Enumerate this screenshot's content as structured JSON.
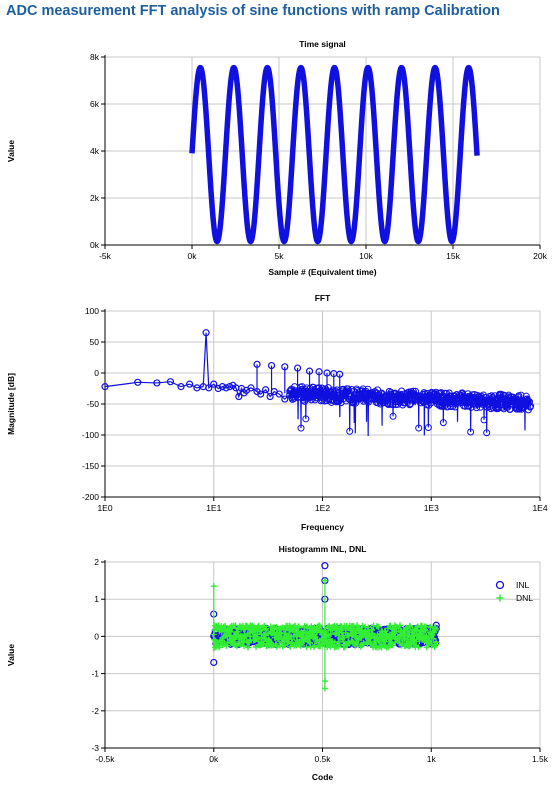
{
  "page": {
    "title": "ADC measurement FFT analysis of sine functions with ramp Calibration"
  },
  "colors": {
    "series_blue": "#1010e0",
    "series_green": "#33ee33",
    "grid": "#c8c8c8",
    "title": "#1f5e9e"
  },
  "chart_data": [
    {
      "type": "scatter",
      "title": "Time signal",
      "xlabel": "Sample # (Equivalent time)",
      "ylabel": "Value",
      "xlim": [
        -5000,
        20000
      ],
      "ylim": [
        0,
        8000
      ],
      "x_ticks": [
        -5000,
        0,
        5000,
        10000,
        15000,
        20000
      ],
      "x_tick_labels": [
        "-5k",
        "0k",
        "5k",
        "10k",
        "15k",
        "20k"
      ],
      "y_ticks": [
        0,
        2000,
        4000,
        6000,
        8000
      ],
      "y_tick_labels": [
        "0k",
        "2k",
        "4k",
        "6k",
        "8k"
      ],
      "grid": true,
      "series": [
        {
          "color": "#1010e0",
          "signal": {
            "shape": "sine",
            "x_start": 0,
            "x_end": 16384,
            "cycles": 8.5,
            "mean": 3850,
            "amplitude": 3700,
            "start_value": 3900
          }
        }
      ]
    },
    {
      "type": "line",
      "title": "FFT",
      "xlabel": "Frequency",
      "ylabel": "Magnitude [dB]",
      "x_scale": "log",
      "xlim": [
        1,
        10000
      ],
      "ylim": [
        -200,
        100
      ],
      "x_ticks": [
        1,
        10,
        100,
        1000,
        10000
      ],
      "x_tick_labels": [
        "1E0",
        "1E1",
        "1E2",
        "1E3",
        "1E4"
      ],
      "y_ticks": [
        -200,
        -150,
        -100,
        -50,
        0,
        50,
        100
      ],
      "y_tick_labels": [
        "-200",
        "-150",
        "-100",
        "-50",
        "0",
        "50",
        "100"
      ],
      "grid": true,
      "series": [
        {
          "color": "#1010e0",
          "marker": "circle",
          "x": [
            1,
            2,
            3,
            4,
            5,
            6,
            7,
            8,
            8.5,
            9,
            10,
            11,
            12,
            13,
            14,
            15,
            16,
            17,
            18,
            19,
            20,
            22,
            25,
            27,
            30,
            33,
            36,
            40,
            45,
            50
          ],
          "y": [
            -22,
            -15,
            -16,
            -14,
            -22,
            -18,
            -24,
            -22,
            65,
            -24,
            -18,
            -25,
            -22,
            -24,
            -22,
            -20,
            -24,
            -38,
            -25,
            -32,
            -28,
            -24,
            -30,
            -34,
            -27,
            -38,
            -30,
            -34,
            -42,
            -35
          ],
          "trend": {
            "x_start": 50,
            "x_end": 8192,
            "start_mean": -33,
            "end_mean": -48,
            "spread": 12,
            "dips_to": -103
          },
          "spurs": [
            {
              "x": 25,
              "y": 14
            },
            {
              "x": 34,
              "y": 12
            },
            {
              "x": 45,
              "y": 10
            },
            {
              "x": 59,
              "y": 8
            },
            {
              "x": 76,
              "y": 3
            },
            {
              "x": 93,
              "y": 2
            },
            {
              "x": 110,
              "y": 0
            },
            {
              "x": 127,
              "y": -1
            },
            {
              "x": 144,
              "y": -2
            }
          ]
        }
      ]
    },
    {
      "type": "scatter",
      "title": "Histogramm INL, DNL",
      "xlabel": "Code",
      "ylabel": "Value",
      "xlim": [
        -500,
        1500
      ],
      "ylim": [
        -3,
        2
      ],
      "x_ticks": [
        -500,
        0,
        500,
        1000,
        1500
      ],
      "x_tick_labels": [
        "-0.5k",
        "0k",
        "0.5k",
        "1k",
        "1.5k"
      ],
      "y_ticks": [
        -3,
        -2,
        -1,
        0,
        1,
        2
      ],
      "y_tick_labels": [
        "-3",
        "-2",
        "-1",
        "0",
        "1",
        "2"
      ],
      "grid": true,
      "legend": "top-right",
      "series": [
        {
          "name": "INL",
          "color": "#1010e0",
          "marker": "circle",
          "band": {
            "x_start": 0,
            "x_end": 1023,
            "spread": 0.22
          },
          "outliers": [
            {
              "x": 0,
              "y": 0.6
            },
            {
              "x": 0,
              "y": -0.7
            },
            {
              "x": 511,
              "y": 1.9
            },
            {
              "x": 511,
              "y": 1.5
            },
            {
              "x": 511,
              "y": 1.0
            },
            {
              "x": 1023,
              "y": 0.3
            }
          ]
        },
        {
          "name": "DNL",
          "color": "#33ee33",
          "marker": "plus",
          "band": {
            "x_start": 0,
            "x_end": 1023,
            "spread": 0.3
          },
          "outliers": [
            {
              "x": 0,
              "y": 1.35
            },
            {
              "x": 511,
              "y": -1.4
            },
            {
              "x": 511,
              "y": 1.5
            },
            {
              "x": 512,
              "y": -1.2
            }
          ]
        }
      ]
    }
  ]
}
